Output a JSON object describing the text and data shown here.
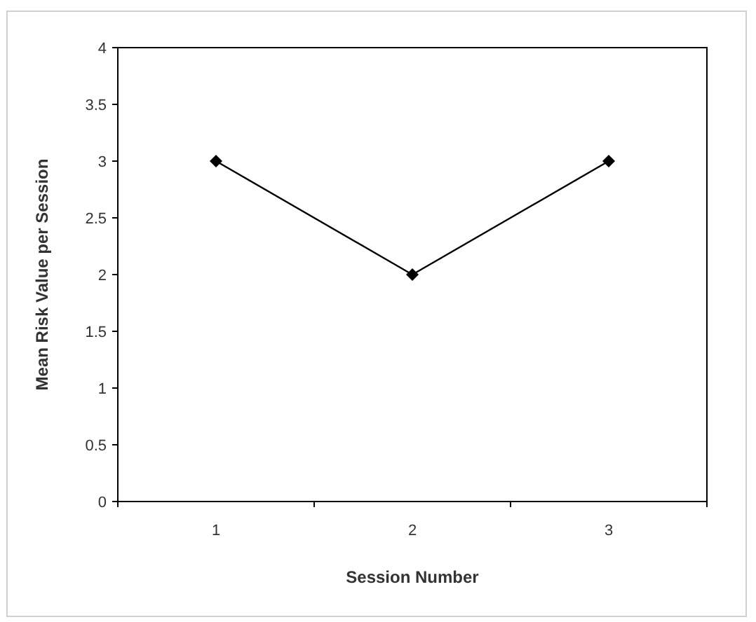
{
  "chart_data": {
    "type": "line",
    "xlabel": "Session Number",
    "ylabel": "Mean Risk Value per Session",
    "categories": [
      "1",
      "2",
      "3"
    ],
    "series": [
      {
        "color": "#000000",
        "values": [
          3,
          2,
          3
        ]
      }
    ],
    "ylim": [
      0,
      4
    ],
    "yticks": [
      0,
      0.5,
      1,
      1.5,
      2,
      2.5,
      3,
      3.5,
      4
    ],
    "grid": false,
    "marker": "diamond",
    "line_style": "solid"
  }
}
